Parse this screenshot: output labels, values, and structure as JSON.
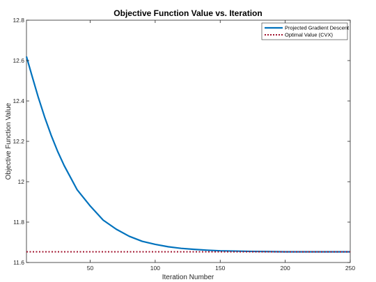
{
  "chart_data": {
    "type": "line",
    "title": "Objective Function Value vs. Iteration",
    "xlabel": "Iteration Number",
    "ylabel": "Objective Function Value",
    "xlim": [
      1,
      250
    ],
    "ylim": [
      11.6,
      12.8
    ],
    "xticks": [
      50,
      100,
      150,
      200,
      250
    ],
    "yticks": [
      11.6,
      11.8,
      12,
      12.2,
      12.4,
      12.6,
      12.8
    ],
    "grid": false,
    "legend_position": "top-right",
    "series": [
      {
        "name": "Projected Gradient Descent",
        "style": "solid",
        "color": "#0072BD",
        "x": [
          1,
          5,
          10,
          15,
          20,
          25,
          30,
          35,
          40,
          45,
          50,
          60,
          70,
          80,
          90,
          100,
          110,
          120,
          130,
          140,
          150,
          175,
          200,
          225,
          250
        ],
        "y": [
          12.62,
          12.53,
          12.42,
          12.32,
          12.23,
          12.15,
          12.08,
          12.02,
          11.96,
          11.92,
          11.88,
          11.81,
          11.765,
          11.73,
          11.705,
          11.69,
          11.678,
          11.67,
          11.665,
          11.661,
          11.658,
          11.655,
          11.653,
          11.653,
          11.653
        ]
      },
      {
        "name": "Optimal Value (CVX)",
        "style": "dotted",
        "color": "#A2142F",
        "x": [
          1,
          250
        ],
        "y": [
          11.653,
          11.653
        ]
      }
    ]
  }
}
